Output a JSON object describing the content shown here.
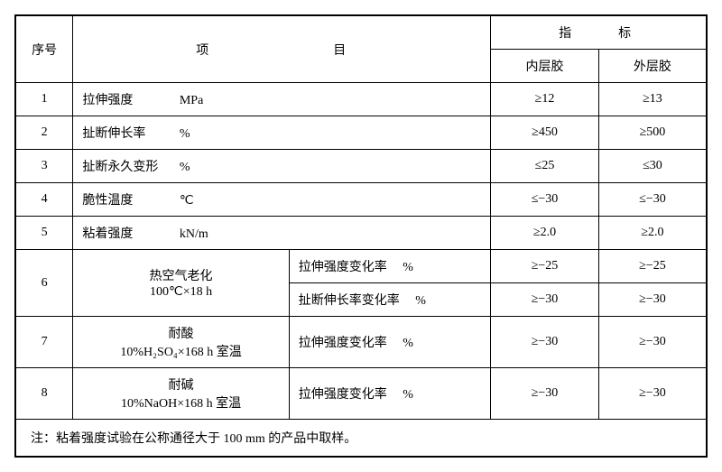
{
  "headers": {
    "seq": "序号",
    "item": "项　　　目",
    "indicator": "指　　标",
    "inner": "内层胶",
    "outer": "外层胶"
  },
  "rows": [
    {
      "seq": "1",
      "name": "拉伸强度",
      "unit": "MPa",
      "inner": "≥12",
      "outer": "≥13"
    },
    {
      "seq": "2",
      "name": "扯断伸长率",
      "unit": "%",
      "inner": "≥450",
      "outer": "≥500"
    },
    {
      "seq": "3",
      "name": "扯断永久变形",
      "unit": "%",
      "inner": "≤25",
      "outer": "≤30"
    },
    {
      "seq": "4",
      "name": "脆性温度",
      "unit": "℃",
      "inner": "≤−30",
      "outer": "≤−30"
    },
    {
      "seq": "5",
      "name": "粘着强度",
      "unit": "kN/m",
      "inner": "≥2.0",
      "outer": "≥2.0"
    }
  ],
  "row6": {
    "seq": "6",
    "name": "热空气老化",
    "cond": "100℃×18 h",
    "sub1": {
      "label": "拉伸强度变化率",
      "unit": "%",
      "inner": "≥−25",
      "outer": "≥−25"
    },
    "sub2": {
      "label": "扯断伸长率变化率",
      "unit": "%",
      "inner": "≥−30",
      "outer": "≥−30"
    }
  },
  "row7": {
    "seq": "7",
    "name": "耐酸",
    "cond": "10%H₂SO₄×168 h 室温",
    "sub": {
      "label": "拉伸强度变化率",
      "unit": "%",
      "inner": "≥−30",
      "outer": "≥−30"
    }
  },
  "row8": {
    "seq": "8",
    "name": "耐碱",
    "cond": "10%NaOH×168 h 室温",
    "sub": {
      "label": "拉伸强度变化率",
      "unit": "%",
      "inner": "≥−30",
      "outer": "≥−30"
    }
  },
  "note": "注：粘着强度试验在公称通径大于 100 mm 的产品中取样。"
}
